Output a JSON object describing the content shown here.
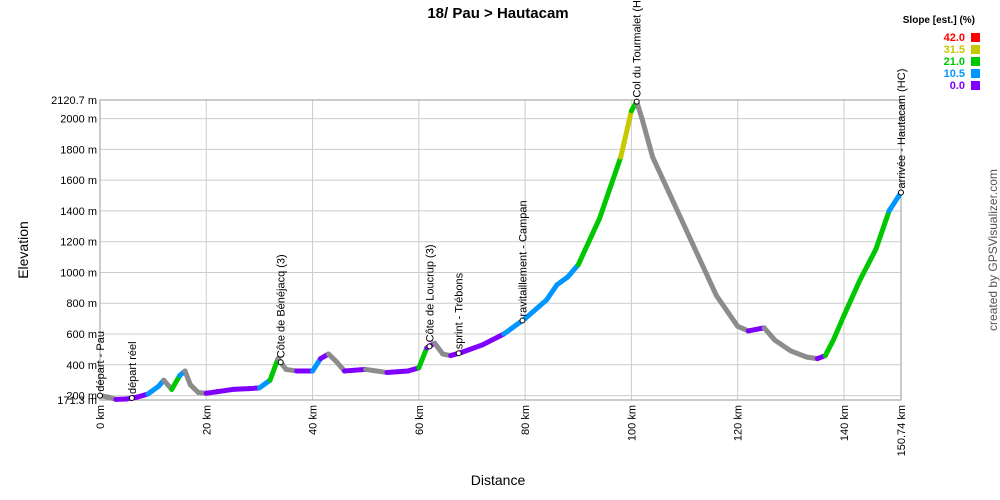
{
  "chart_data": {
    "type": "area",
    "title": "18/ Pau > Hautacam",
    "xlabel": "Distance",
    "ylabel": "Elevation",
    "xlim": [
      0,
      150.74
    ],
    "ylim": [
      171.3,
      2120.7
    ],
    "x_ticks": [
      {
        "value": 0,
        "label": "0 km"
      },
      {
        "value": 20,
        "label": "20 km"
      },
      {
        "value": 40,
        "label": "40 km"
      },
      {
        "value": 60,
        "label": "60 km"
      },
      {
        "value": 80,
        "label": "80 km"
      },
      {
        "value": 100,
        "label": "100 km"
      },
      {
        "value": 120,
        "label": "120 km"
      },
      {
        "value": 140,
        "label": "140 km"
      },
      {
        "value": 150.74,
        "label": "150.74 km"
      }
    ],
    "y_ticks": [
      {
        "value": 171.3,
        "label": "171.3 m"
      },
      {
        "value": 200,
        "label": "200 m"
      },
      {
        "value": 400,
        "label": "400 m"
      },
      {
        "value": 600,
        "label": "600 m"
      },
      {
        "value": 800,
        "label": "800 m"
      },
      {
        "value": 1000,
        "label": "1000 m"
      },
      {
        "value": 1200,
        "label": "1200 m"
      },
      {
        "value": 1400,
        "label": "1400 m"
      },
      {
        "value": 1600,
        "label": "1600 m"
      },
      {
        "value": 1800,
        "label": "1800 m"
      },
      {
        "value": 2000,
        "label": "2000 m"
      },
      {
        "value": 2120.7,
        "label": "2120.7 m"
      }
    ],
    "grid": true,
    "profile": {
      "x": [
        0,
        1.5,
        3,
        5,
        7,
        9,
        11,
        12,
        13.5,
        15,
        16,
        17,
        18.5,
        20,
        22,
        25,
        28,
        30,
        32,
        33.5,
        35,
        37,
        40,
        41.5,
        43,
        44.5,
        46,
        48,
        50,
        52,
        54,
        56,
        58,
        60,
        61.5,
        63,
        64.5,
        66,
        68,
        72,
        76,
        80,
        84,
        86,
        88,
        90,
        94,
        98,
        100,
        101,
        102,
        104,
        108,
        112,
        116,
        120,
        122,
        125,
        127,
        130,
        133,
        135,
        136.5,
        138,
        140,
        143,
        146,
        148.5,
        150.74
      ],
      "y": [
        200,
        190,
        175,
        178,
        190,
        210,
        260,
        300,
        240,
        330,
        360,
        270,
        220,
        215,
        225,
        240,
        245,
        250,
        300,
        440,
        370,
        360,
        360,
        440,
        470,
        420,
        360,
        365,
        370,
        360,
        350,
        355,
        360,
        380,
        510,
        540,
        470,
        460,
        480,
        530,
        600,
        700,
        820,
        920,
        970,
        1050,
        1350,
        1750,
        2050,
        2110,
        2000,
        1750,
        1450,
        1150,
        850,
        650,
        620,
        640,
        560,
        490,
        450,
        440,
        460,
        560,
        720,
        950,
        1150,
        1400,
        1520
      ]
    },
    "annotations": [
      {
        "x": 0,
        "label": "départ - Pau"
      },
      {
        "x": 6,
        "label": "départ réel"
      },
      {
        "x": 34,
        "label": "Côte de Bénéjacq (3)"
      },
      {
        "x": 62,
        "label": "Côte de Loucrup (3)"
      },
      {
        "x": 67.5,
        "label": "sprint - Trébons"
      },
      {
        "x": 79.5,
        "label": "ravitaillement - Campan"
      },
      {
        "x": 101,
        "label": "Col du Tourmalet (HC)"
      },
      {
        "x": 150.74,
        "label": "arrivée - Hautacam (HC)"
      }
    ],
    "legend": {
      "title": "Slope [est.] (%)",
      "position": "top-right",
      "entries": [
        {
          "label": "42.0",
          "color": "#ff0000"
        },
        {
          "label": "31.5",
          "color": "#c8c800"
        },
        {
          "label": "21.0",
          "color": "#00c800"
        },
        {
          "label": "10.5",
          "color": "#0096ff"
        },
        {
          "label": "0.0",
          "color": "#8000ff"
        }
      ]
    }
  },
  "credit": "created by GPSVisualizer.com"
}
